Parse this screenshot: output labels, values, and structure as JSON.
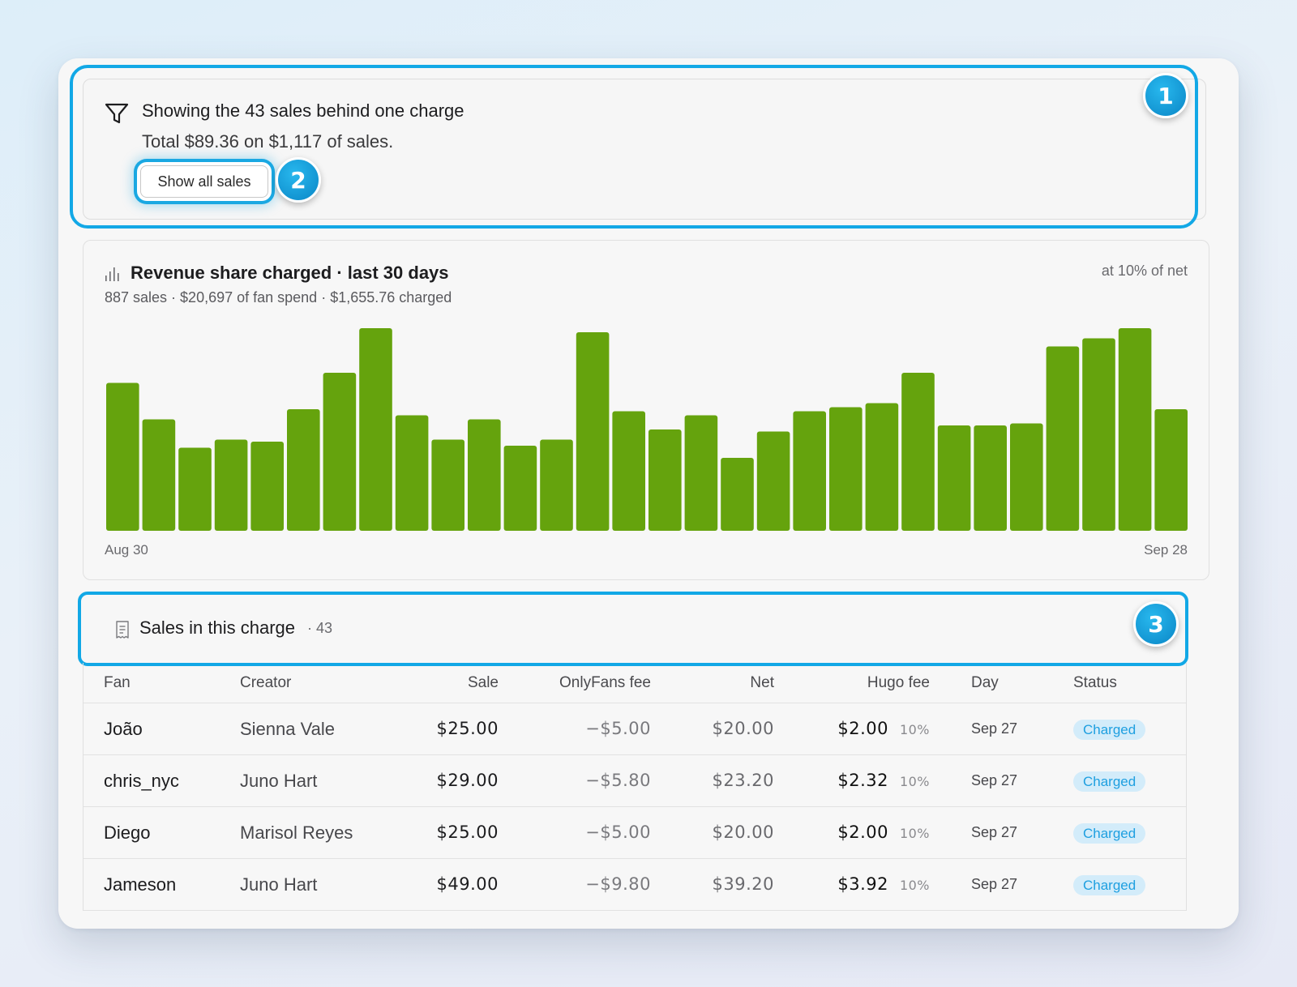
{
  "filter": {
    "title": "Showing the 43 sales behind one charge",
    "subtitle": "Total $89.36 on $1,117 of sales.",
    "show_all_label": "Show all sales"
  },
  "badges": [
    "1",
    "2",
    "3"
  ],
  "chart": {
    "title": "Revenue share charged · last 30 days",
    "subtitle": "887 sales · $20,697 of fan spend · $1,655.76 charged",
    "rate_note": "at 10% of net",
    "start_label": "Aug 30",
    "end_label": "Sep 28",
    "bar_color": "#65a30d"
  },
  "chart_data": {
    "type": "bar",
    "x_start": "Aug 30",
    "x_end": "Sep 28",
    "values": [
      73,
      55,
      41,
      45,
      44,
      60,
      78,
      100,
      57,
      45,
      55,
      42,
      45,
      98,
      59,
      50,
      57,
      36,
      49,
      59,
      61,
      63,
      78,
      52,
      52,
      53,
      91,
      95,
      100,
      60
    ]
  },
  "sales": {
    "title": "Sales in this charge",
    "count": "· 43",
    "columns": [
      "Fan",
      "Creator",
      "Sale",
      "OnlyFans fee",
      "Net",
      "Hugo fee",
      "Day",
      "Status"
    ],
    "rows": [
      {
        "fan": "João",
        "creator": "Sienna Vale",
        "sale": "$25.00",
        "of_fee": "−$5.00",
        "net": "$20.00",
        "hugo_fee": "$2.00",
        "pct": "10%",
        "day": "Sep 27",
        "status": "Charged"
      },
      {
        "fan": "chris_nyc",
        "creator": "Juno Hart",
        "sale": "$29.00",
        "of_fee": "−$5.80",
        "net": "$23.20",
        "hugo_fee": "$2.32",
        "pct": "10%",
        "day": "Sep 27",
        "status": "Charged"
      },
      {
        "fan": "Diego",
        "creator": "Marisol Reyes",
        "sale": "$25.00",
        "of_fee": "−$5.00",
        "net": "$20.00",
        "hugo_fee": "$2.00",
        "pct": "10%",
        "day": "Sep 27",
        "status": "Charged"
      },
      {
        "fan": "Jameson",
        "creator": "Juno Hart",
        "sale": "$49.00",
        "of_fee": "−$9.80",
        "net": "$39.20",
        "hugo_fee": "$3.92",
        "pct": "10%",
        "day": "Sep 27",
        "status": "Charged"
      }
    ]
  },
  "accent_color": "#12a8e6",
  "status_color": "#1e9fe0"
}
